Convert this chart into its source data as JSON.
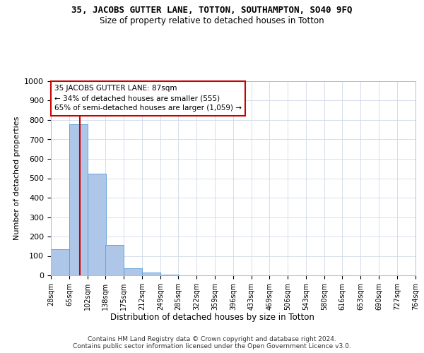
{
  "title": "35, JACOBS GUTTER LANE, TOTTON, SOUTHAMPTON, SO40 9FQ",
  "subtitle": "Size of property relative to detached houses in Totton",
  "xlabel": "Distribution of detached houses by size in Totton",
  "ylabel": "Number of detached properties",
  "bin_edges": [
    28,
    65,
    102,
    138,
    175,
    212,
    249,
    285,
    322,
    359,
    396,
    433,
    469,
    506,
    543,
    580,
    616,
    653,
    690,
    727,
    764
  ],
  "bar_heights": [
    133,
    778,
    525,
    158,
    37,
    13,
    3,
    1,
    0,
    0,
    0,
    0,
    0,
    0,
    0,
    0,
    0,
    0,
    0,
    0
  ],
  "bar_color": "#aec6e8",
  "bar_edgecolor": "#5b9bd5",
  "property_size": 87,
  "vline_color": "#cc0000",
  "annotation_text": "35 JACOBS GUTTER LANE: 87sqm\n← 34% of detached houses are smaller (555)\n65% of semi-detached houses are larger (1,059) →",
  "annotation_box_color": "#cc0000",
  "ylim": [
    0,
    1000
  ],
  "yticks": [
    0,
    100,
    200,
    300,
    400,
    500,
    600,
    700,
    800,
    900,
    1000
  ],
  "footer": "Contains HM Land Registry data © Crown copyright and database right 2024.\nContains public sector information licensed under the Open Government Licence v3.0.",
  "bg_color": "#ffffff",
  "grid_color": "#d0d8e8"
}
